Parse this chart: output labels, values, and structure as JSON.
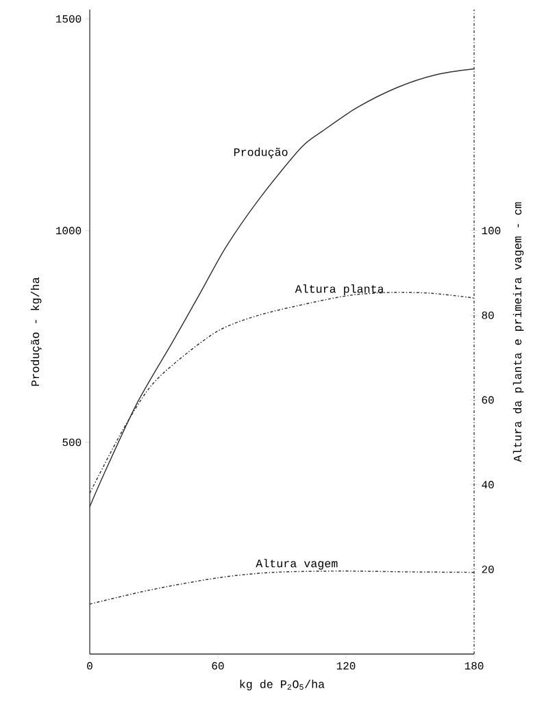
{
  "chart_data": {
    "type": "line",
    "xlabel": "kg de P$_{2}$O$_{5}$/ha",
    "ylabel": "Produção - kg/ha",
    "y2label": "Altura da planta e primeira vagem - cm",
    "xlim": [
      0,
      180
    ],
    "xticks": [
      0,
      60,
      120,
      180
    ],
    "ylim": [
      0,
      1522
    ],
    "yticks": [
      500,
      1000,
      1500
    ],
    "y2lim": [
      0,
      152.2
    ],
    "y2ticks": [
      20,
      40,
      60,
      80,
      100
    ],
    "legend": false,
    "grid": false,
    "marker": "none",
    "series": [
      {
        "name": "Produção",
        "color": "#333333",
        "line_style": "solid",
        "x": [
          0,
          7,
          22,
          39,
          52,
          64,
          80,
          99,
          109,
          125,
          144,
          162,
          180
        ],
        "values": [
          348,
          429,
          591,
          739,
          855,
          963,
          1079,
          1196,
          1235,
          1290,
          1338,
          1368,
          1382
        ]
      },
      {
        "name": "Altura planta",
        "color": "#333333",
        "line_style": "dashed",
        "axis": "y2",
        "x": [
          0,
          15,
          28,
          41,
          60,
          79,
          104,
          123,
          142,
          160,
          180
        ],
        "values": [
          38,
          52.5,
          62.9,
          69.2,
          76.3,
          80,
          83,
          84.8,
          85.4,
          85.2,
          84.1
        ]
      },
      {
        "name": "Altura vagem",
        "color": "#333333",
        "line_style": "dashed",
        "axis": "y2",
        "x": [
          0,
          28,
          60,
          86,
          118,
          150,
          180
        ],
        "values": [
          11.8,
          15.1,
          18,
          19.3,
          19.6,
          19.4,
          19.3
        ]
      }
    ]
  }
}
